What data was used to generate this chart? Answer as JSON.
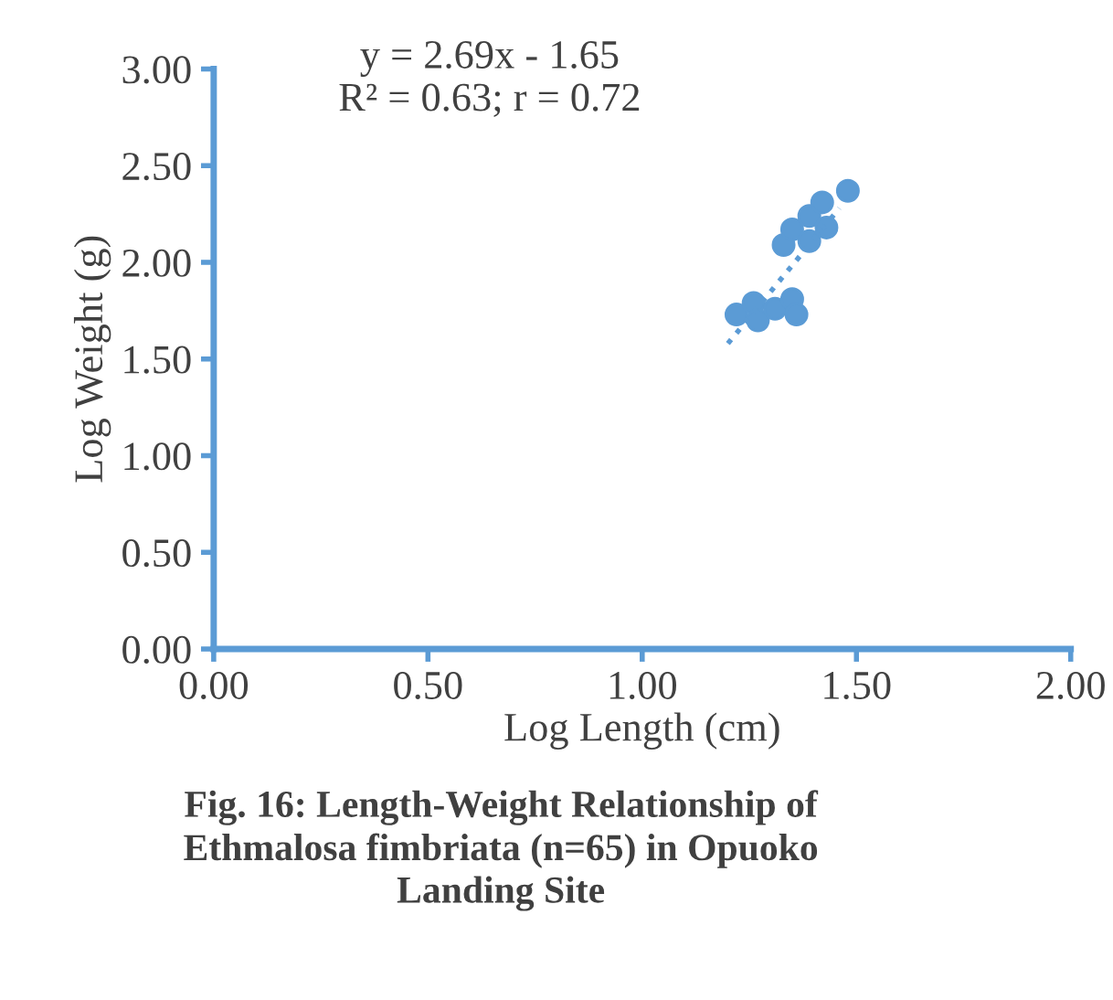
{
  "chart_data": {
    "type": "scatter",
    "xlabel": "Log Length (cm)",
    "ylabel": "Log Weight (g)",
    "xlim": [
      0,
      2
    ],
    "xticks": [
      {
        "value": 0,
        "label": "0.00"
      },
      {
        "value": 0.5,
        "label": "0.50"
      },
      {
        "value": 1,
        "label": "1.00"
      },
      {
        "value": 1.5,
        "label": "1.50"
      },
      {
        "value": 2,
        "label": "2.00"
      }
    ],
    "ylim": [
      0,
      3
    ],
    "yticks": [
      {
        "value": 0,
        "label": "0.00"
      },
      {
        "value": 0.5,
        "label": "0.50"
      },
      {
        "value": 1,
        "label": "1.00"
      },
      {
        "value": 1.5,
        "label": "1.50"
      },
      {
        "value": 2,
        "label": "2.00"
      },
      {
        "value": 2.5,
        "label": "2.50"
      },
      {
        "value": 3,
        "label": "3.00"
      }
    ],
    "grid": false,
    "legend": false,
    "series": [
      {
        "color": "#5b9bd5",
        "marker": "circle",
        "x": [
          1.22,
          1.26,
          1.27,
          1.31,
          1.35,
          1.36,
          1.33,
          1.35,
          1.39,
          1.39,
          1.43,
          1.42,
          1.48
        ],
        "values": [
          1.73,
          1.79,
          1.7,
          1.76,
          1.81,
          1.73,
          2.09,
          2.17,
          2.11,
          2.24,
          2.18,
          2.31,
          2.37
        ]
      },
      {
        "type": "line",
        "color": "#5b9bd5",
        "marker": "none",
        "line_style": "dotted",
        "x": [
          1.2,
          1.46
        ],
        "values": [
          1.58,
          2.28
        ]
      }
    ],
    "annotations": [
      "y = 2.69x - 1.65\nR² = 0.63; r = 0.72",
      "Fig. 16: Length-Weight Relationship of\nEthmalosa fimbriata (n=65) in Opuoko\nLanding Site"
    ]
  }
}
